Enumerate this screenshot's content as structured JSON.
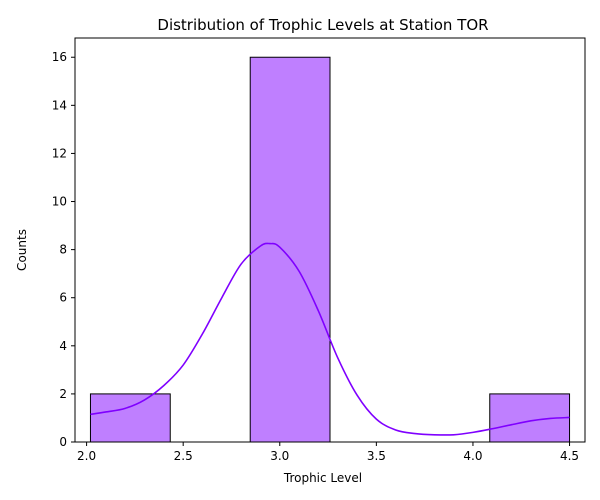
{
  "chart_data": {
    "type": "bar",
    "title": "Distribution of Trophic Levels at Station TOR",
    "xlabel": "Trophic Level",
    "ylabel": "Counts",
    "xlim": [
      1.94,
      4.58
    ],
    "ylim": [
      0,
      16.8
    ],
    "xticks": [
      2.0,
      2.5,
      3.0,
      3.5,
      4.0,
      4.5
    ],
    "xtick_labels": [
      "2.0",
      "2.5",
      "3.0",
      "3.5",
      "4.0",
      "4.5"
    ],
    "yticks": [
      0,
      2,
      4,
      6,
      8,
      10,
      12,
      14,
      16
    ],
    "ytick_labels": [
      "0",
      "2",
      "4",
      "6",
      "8",
      "10",
      "12",
      "14",
      "16"
    ],
    "bins": [
      {
        "x0": 2.02,
        "x1": 2.433,
        "count": 2
      },
      {
        "x0": 2.433,
        "x1": 2.847,
        "count": 0
      },
      {
        "x0": 2.847,
        "x1": 3.26,
        "count": 16
      },
      {
        "x0": 3.26,
        "x1": 3.673,
        "count": 0
      },
      {
        "x0": 3.673,
        "x1": 4.087,
        "count": 0
      },
      {
        "x0": 4.087,
        "x1": 4.5,
        "count": 2
      }
    ],
    "bar_color": "#bf7fff",
    "bar_edge_color": "#000000",
    "kde_color": "#7f00ff",
    "kde": {
      "x": [
        2.02,
        2.1,
        2.2,
        2.3,
        2.4,
        2.5,
        2.6,
        2.7,
        2.8,
        2.9,
        2.95,
        3.0,
        3.1,
        3.2,
        3.3,
        3.4,
        3.5,
        3.6,
        3.7,
        3.8,
        3.9,
        4.0,
        4.1,
        4.2,
        4.3,
        4.4,
        4.5
      ],
      "y": [
        1.15,
        1.25,
        1.4,
        1.75,
        2.35,
        3.2,
        4.5,
        6.0,
        7.4,
        8.15,
        8.25,
        8.1,
        7.1,
        5.45,
        3.5,
        1.95,
        0.95,
        0.5,
        0.35,
        0.3,
        0.3,
        0.4,
        0.55,
        0.72,
        0.88,
        0.98,
        1.02
      ]
    },
    "grid": false,
    "legend": "none"
  }
}
